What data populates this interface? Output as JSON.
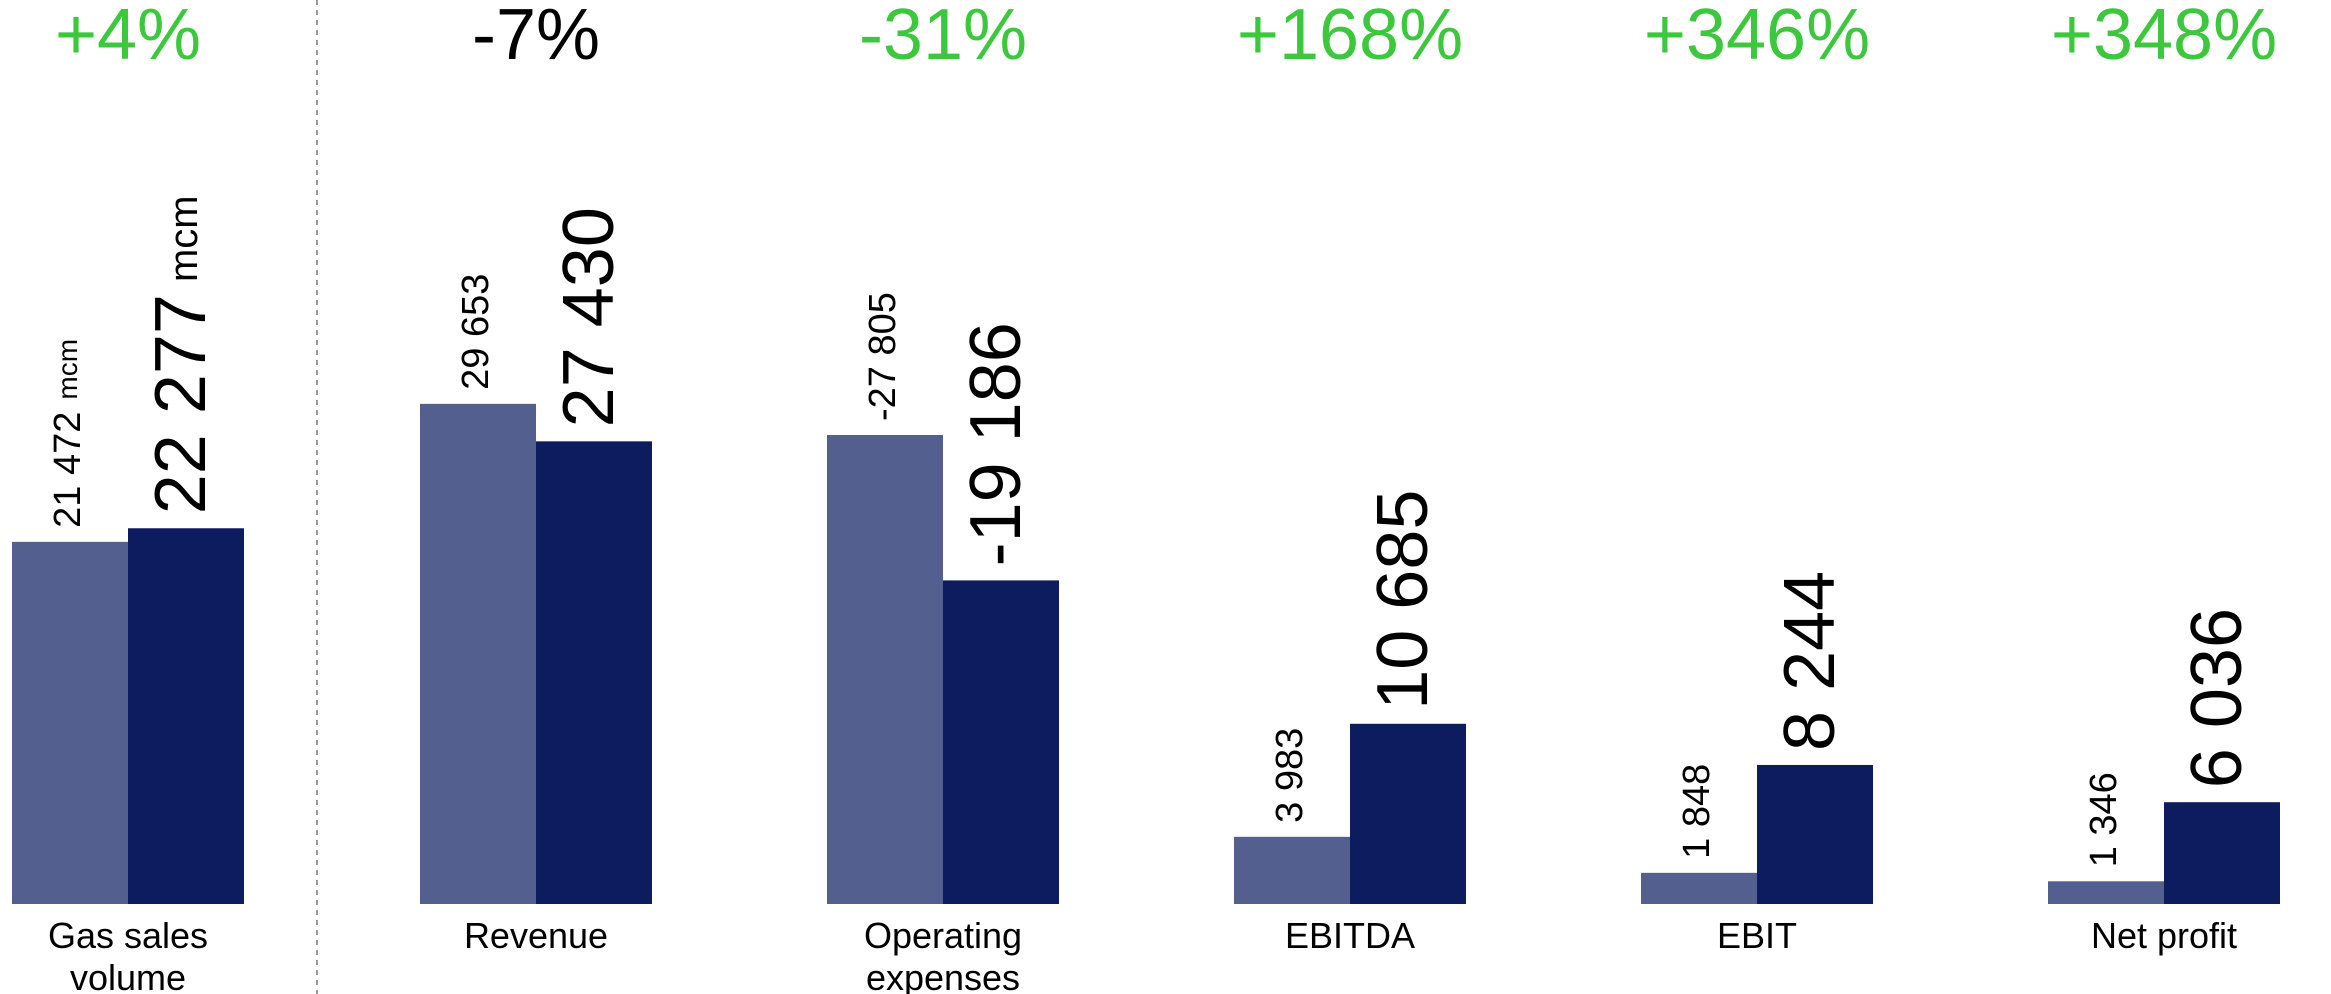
{
  "chart_data": {
    "type": "bar",
    "categories": [
      "Gas sales volume",
      "Revenue",
      "Operating expenses",
      "EBITDA",
      "EBIT",
      "Net profit"
    ],
    "unit": "mcm",
    "change_labels": [
      "+4%",
      "-7%",
      "-31%",
      "+168%",
      "+346%",
      "+348%"
    ],
    "change_colors": [
      "#3cc83c",
      "#000000",
      "#3cc83c",
      "#3cc83c",
      "#3cc83c",
      "#3cc83c"
    ],
    "series": [
      {
        "color": "#53608f",
        "values": [
          21472,
          29653,
          -27805,
          3983,
          1848,
          1346
        ],
        "value_labels": [
          "21 472",
          "29 653",
          "-27 805",
          "3 983",
          "1 848",
          "1 346"
        ]
      },
      {
        "color": "#0c1c5e",
        "values": [
          22277,
          27430,
          -19186,
          10685,
          8244,
          6036
        ],
        "value_labels": [
          "22 277",
          "27 430",
          "-19 186",
          "10 685",
          "8 244",
          "6 036"
        ]
      }
    ],
    "ylim": [
      0,
      30000
    ]
  }
}
